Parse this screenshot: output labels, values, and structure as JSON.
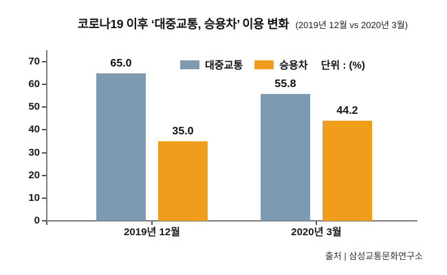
{
  "title": {
    "main": "코로나19 이후 ‘대중교통, 승용차’ 이용 변화",
    "sub": "(2019년 12월 vs 2020년 3월)"
  },
  "legend": {
    "unit_label": "단위 : (%)"
  },
  "chart_data": {
    "type": "bar",
    "title": "코로나19 이후 ‘대중교통, 승용차’ 이용 변화 (2019년 12월 vs 2020년 3월)",
    "categories": [
      "2019년 12월",
      "2020년 3월"
    ],
    "series": [
      {
        "name": "대중교통",
        "color": "#7e9ab0",
        "values": [
          65.0,
          55.8
        ],
        "labels": [
          "65.0",
          "55.8"
        ]
      },
      {
        "name": "승용차",
        "color": "#f09d1b",
        "values": [
          35.0,
          44.2
        ],
        "labels": [
          "35.0",
          "44.2"
        ]
      }
    ],
    "ylim": [
      0,
      70
    ],
    "yticks": [
      0,
      10,
      20,
      30,
      40,
      50,
      60,
      70
    ],
    "grid": false,
    "legend_position": "top-center",
    "unit": "%"
  },
  "source": "출처 | 삼성교통문화연구소",
  "colors": {
    "background": "#ffffff",
    "axis": "#7f7f7f",
    "text": "#111111",
    "series_public_transit": "#7e9ab0",
    "series_car": "#f09d1b"
  }
}
